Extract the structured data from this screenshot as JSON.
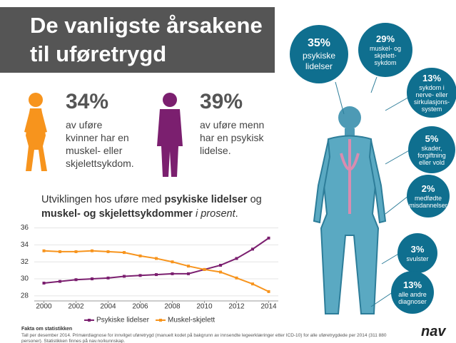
{
  "header": {
    "title_lines": [
      "De vanligste årsakene",
      "til uføretrygd"
    ]
  },
  "facts": [
    {
      "percent": "34%",
      "lines": [
        "av uføre",
        "kvinner har en",
        "muskel- eller",
        "skjelettsykdom."
      ]
    },
    {
      "percent": "39%",
      "lines": [
        "av uføre menn",
        "har en psykisk",
        "lidelse."
      ]
    }
  ],
  "chart_heading": [
    [
      {
        "text": "Utviklingen hos uføre med ",
        "style": "normal"
      },
      {
        "text": "psykiske lidelser",
        "style": "bold"
      },
      {
        "text": " og",
        "style": "normal"
      }
    ],
    [
      {
        "text": "muskel- og skjelettsykdommer",
        "style": "bold"
      },
      {
        "text": " i prosent",
        "style": "italic"
      },
      {
        "text": ".",
        "style": "normal"
      }
    ]
  ],
  "chart_data": {
    "type": "line",
    "x": [
      2000,
      2001,
      2002,
      2003,
      2004,
      2005,
      2006,
      2007,
      2008,
      2009,
      2010,
      2011,
      2012,
      2013,
      2014
    ],
    "series": [
      {
        "name": "Psykiske lidelser",
        "color": "#7b1f6f",
        "values": [
          29.5,
          29.7,
          29.9,
          30.0,
          30.1,
          30.3,
          30.4,
          30.5,
          30.6,
          30.6,
          31.1,
          31.6,
          32.4,
          33.5,
          34.8
        ]
      },
      {
        "name": "Muskel-skjelett",
        "color": "#f7941d",
        "values": [
          33.3,
          33.2,
          33.2,
          33.3,
          33.2,
          33.1,
          32.7,
          32.4,
          32.0,
          31.5,
          31.1,
          30.8,
          30.1,
          29.4,
          28.5
        ]
      }
    ],
    "xlim": [
      1998.6,
      2014.6
    ],
    "xticks": [
      2000,
      2002,
      2004,
      2006,
      2008,
      2010,
      2012,
      2014
    ],
    "ylim": [
      27.4,
      36.3
    ],
    "yticks": [
      28,
      30,
      32,
      34,
      36
    ],
    "grid": true,
    "legend": "bottom"
  },
  "diagnoses": [
    {
      "percent": "35%",
      "lines": [
        "psykiske",
        "lidelser"
      ]
    },
    {
      "percent": "29%",
      "lines": [
        "muskel- og",
        "skjelett-",
        "sykdom"
      ]
    },
    {
      "percent": "13%",
      "lines": [
        "sykdom i",
        "nerve- eller",
        "sirkulasjons-",
        "system"
      ]
    },
    {
      "percent": "5%",
      "lines": [
        "skader,",
        "forgiftning",
        "eller vold"
      ]
    },
    {
      "percent": "2%",
      "lines": [
        "medfødte",
        "misdannelser"
      ]
    },
    {
      "percent": "3%",
      "lines": [
        "svulster"
      ]
    },
    {
      "percent": "13%",
      "lines": [
        "alle andre",
        "diagnoser"
      ]
    }
  ],
  "footer": {
    "heading": "Fakta om statistikken",
    "text": "Tall per desember 2014. Primærdiagnose for innvilget uføretrygd (manuelt kodet på bakgrunn av innsendte legeerklæringer etter ICD-10) for alle uføretrygdede per 2014 (311 880 personer). Statistikken finnes på nav.no/kunnskap."
  },
  "logo": "nav"
}
